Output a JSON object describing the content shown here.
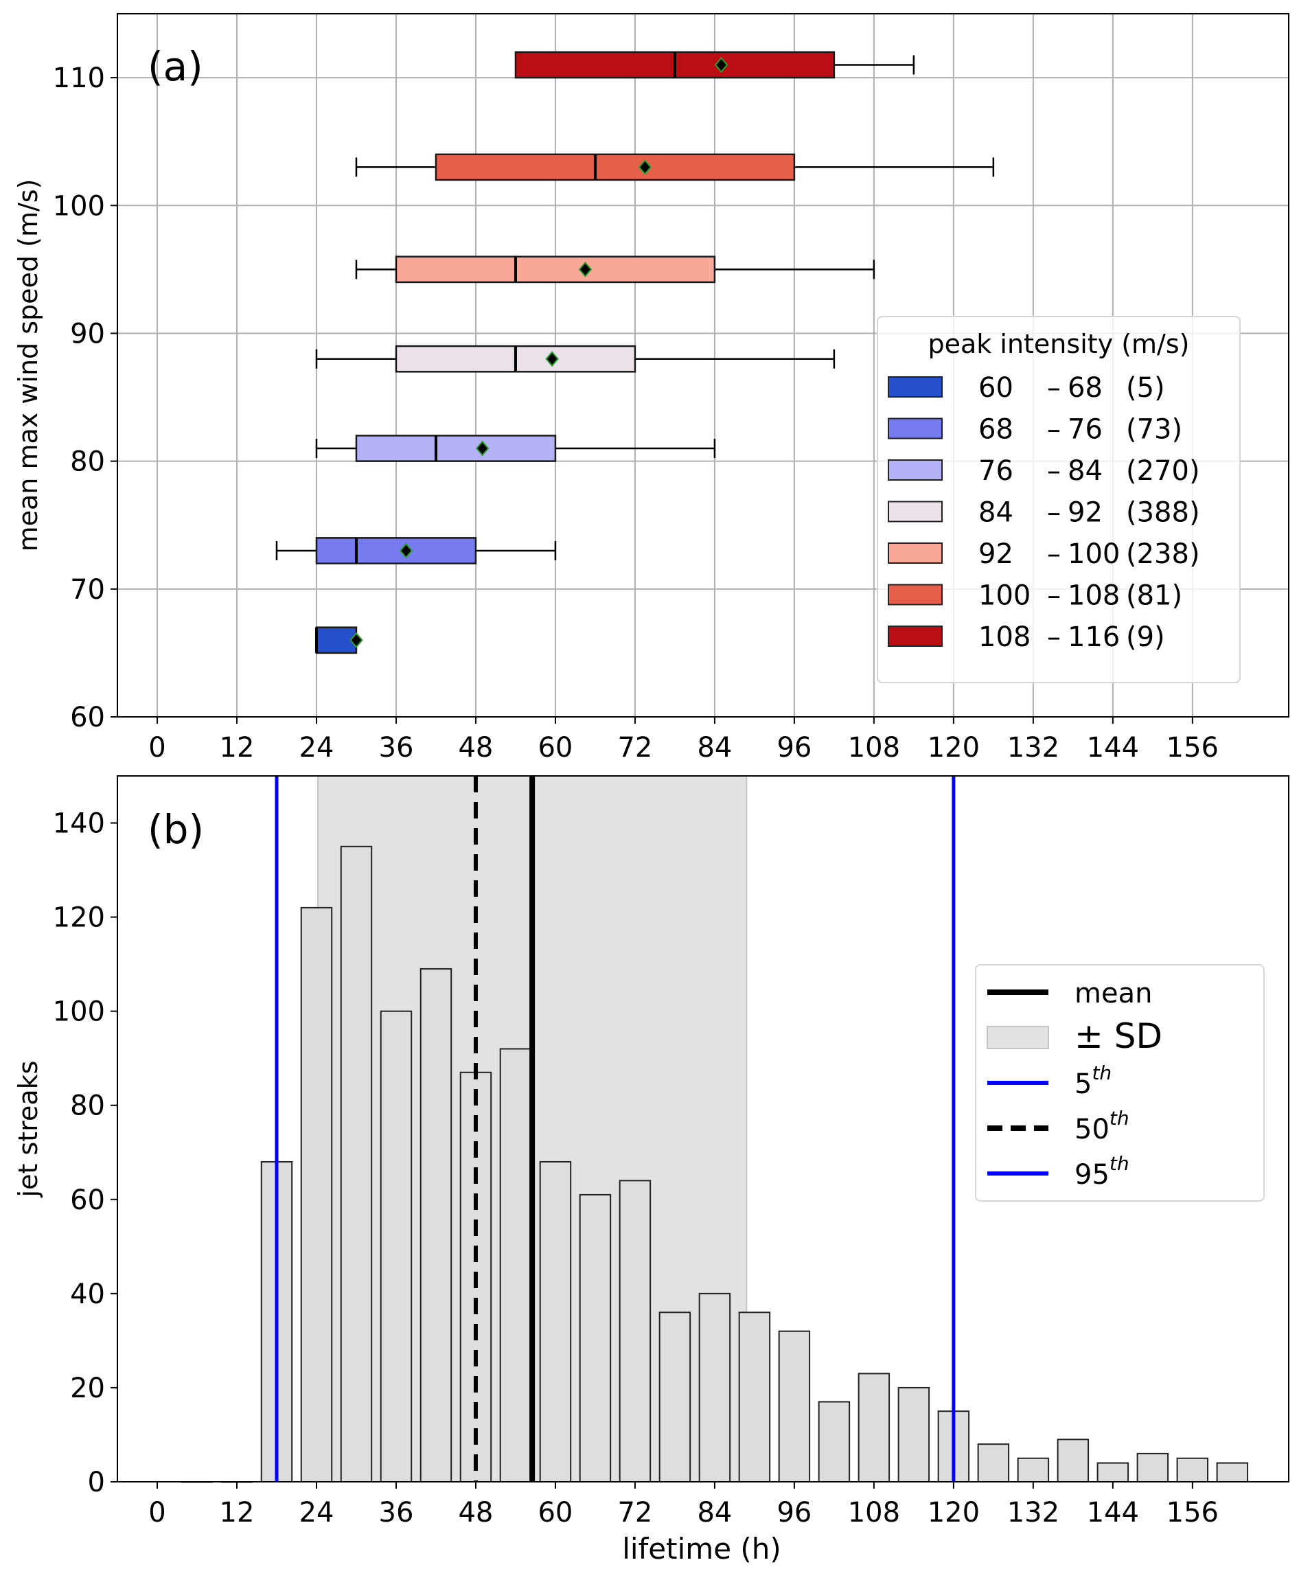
{
  "chart_data": [
    {
      "type": "boxplot",
      "panel_label": "(a)",
      "title": "",
      "xlabel": "",
      "ylabel": "mean max wind speed (m/s)",
      "xlim": [
        -6,
        170.5
      ],
      "ylim": [
        60,
        115
      ],
      "xticks": [
        0,
        12,
        24,
        36,
        48,
        60,
        72,
        84,
        96,
        108,
        120,
        132,
        144,
        156
      ],
      "yticks": [
        60,
        70,
        80,
        90,
        100,
        110
      ],
      "grid": true,
      "orientation": "horizontal",
      "legend": {
        "title": "peak intensity (m/s)",
        "placement": "center-right",
        "entries": [
          {
            "low": "60",
            "high": "68",
            "count": "(5)",
            "color": "#264fcb"
          },
          {
            "low": "68",
            "high": "76",
            "count": "(73)",
            "color": "#767bf0"
          },
          {
            "low": "76",
            "high": "84",
            "count": "(270)",
            "color": "#b4b1f7"
          },
          {
            "low": "84",
            "high": "92",
            "count": "(388)",
            "color": "#eae1e9"
          },
          {
            "low": "92",
            "high": "100",
            "count": "(238)",
            "color": "#f9a797"
          },
          {
            "low": "100",
            "high": "108",
            "count": "(81)",
            "color": "#e65f4b"
          },
          {
            "low": "108",
            "high": "116",
            "count": "(9)",
            "color": "#ba0e14"
          }
        ]
      },
      "series": [
        {
          "name": "60 - 68",
          "y": 66,
          "whisker_low": 24,
          "q1": 24,
          "median": 24,
          "q3": 30,
          "whisker_high": 30,
          "mean": 30,
          "color": "#264fcb"
        },
        {
          "name": "68 - 76",
          "y": 73,
          "whisker_low": 18,
          "q1": 24,
          "median": 30,
          "q3": 48,
          "whisker_high": 60,
          "mean": 37.5,
          "color": "#767bf0"
        },
        {
          "name": "76 - 84",
          "y": 81,
          "whisker_low": 24,
          "q1": 30,
          "median": 42,
          "q3": 60,
          "whisker_high": 84,
          "mean": 49,
          "color": "#b4b1f7"
        },
        {
          "name": "84 - 92",
          "y": 88,
          "whisker_low": 24,
          "q1": 36,
          "median": 54,
          "q3": 72,
          "whisker_high": 102,
          "mean": 59.5,
          "color": "#eae1e9"
        },
        {
          "name": "92 - 100",
          "y": 95,
          "whisker_low": 30,
          "q1": 36,
          "median": 54,
          "q3": 84,
          "whisker_high": 108,
          "mean": 64.5,
          "color": "#f9a797"
        },
        {
          "name": "100 - 108",
          "y": 103,
          "whisker_low": 30,
          "q1": 42,
          "median": 66,
          "q3": 96,
          "whisker_high": 126,
          "mean": 73.5,
          "color": "#e65f4b"
        },
        {
          "name": "108 - 116",
          "y": 111,
          "whisker_low": 54,
          "q1": 54,
          "median": 78,
          "q3": 102,
          "whisker_high": 114,
          "mean": 85,
          "color": "#ba0e14"
        }
      ]
    },
    {
      "type": "bar",
      "panel_label": "(b)",
      "title": "",
      "xlabel": "lifetime (h)",
      "ylabel": "jet streaks",
      "xlim": [
        -6,
        170.5
      ],
      "ylim": [
        0,
        150
      ],
      "xticks": [
        0,
        12,
        24,
        36,
        48,
        60,
        72,
        84,
        96,
        108,
        120,
        132,
        144,
        156
      ],
      "yticks": [
        0,
        20,
        40,
        60,
        80,
        100,
        120,
        140
      ],
      "grid": false,
      "x": [
        6,
        12,
        18,
        24,
        30,
        36,
        42,
        48,
        54,
        60,
        66,
        72,
        78,
        84,
        90,
        96,
        102,
        108,
        114,
        120,
        126,
        132,
        138,
        144,
        150,
        156,
        162
      ],
      "values": [
        0,
        0,
        68,
        122,
        135,
        100,
        109,
        87,
        92,
        68,
        61,
        64,
        36,
        40,
        36,
        32,
        17,
        23,
        20,
        15,
        8,
        5,
        9,
        4,
        6,
        5,
        4
      ],
      "bar_color": "#dcdcdc",
      "statistics": {
        "mean": 56.5,
        "sd_range": [
          24.2,
          88.8
        ],
        "p5": 18,
        "p50": 48,
        "p95": 120
      },
      "legend": {
        "placement": "center-right",
        "entries": [
          {
            "label": "mean",
            "sup": "",
            "style": "solid",
            "color": "#000000"
          },
          {
            "label": "± SD",
            "sup": "",
            "style": "patch",
            "color": "#e2e2e2"
          },
          {
            "label": "5",
            "sup": "th",
            "style": "solid",
            "color": "#0000ff"
          },
          {
            "label": "50",
            "sup": "th",
            "style": "dashed",
            "color": "#000000"
          },
          {
            "label": "95",
            "sup": "th",
            "style": "solid",
            "color": "#0000ff"
          }
        ]
      }
    }
  ]
}
